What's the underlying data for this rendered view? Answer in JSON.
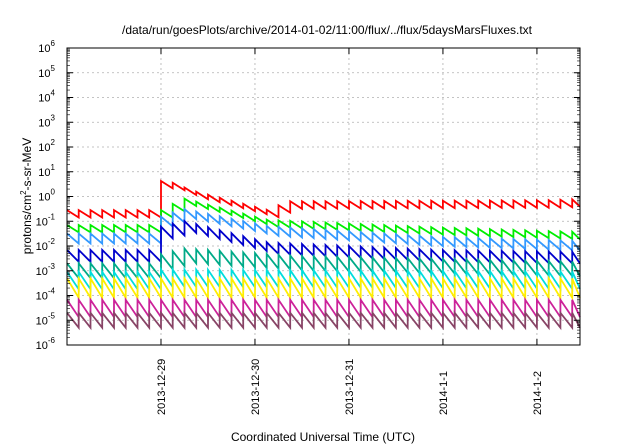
{
  "chart_data": {
    "type": "line",
    "title": "/data/run/goesPlots/archive/2014-01-02/11:00/flux/../flux/5daysMarsFluxes.txt",
    "xlabel": "Coordinated Universal Time (UTC)",
    "ylabel": "protons/cm²-s-sr-MeV",
    "ylabel_parts": {
      "pre": "protons/cm",
      "sup": "2",
      "post": "-s-sr-MeV"
    },
    "y_scale": "log",
    "ylim_exp": [
      -6,
      6
    ],
    "y_ticks": [
      {
        "exp": -6,
        "label_base": "10",
        "label_exp": "-6"
      },
      {
        "exp": -5,
        "label_base": "10",
        "label_exp": "-5"
      },
      {
        "exp": -4,
        "label_base": "10",
        "label_exp": "-4"
      },
      {
        "exp": -3,
        "label_base": "10",
        "label_exp": "-3"
      },
      {
        "exp": -2,
        "label_base": "10",
        "label_exp": "-2"
      },
      {
        "exp": -1,
        "label_base": "10",
        "label_exp": "-1"
      },
      {
        "exp": 0,
        "label_base": "10",
        "label_exp": "0"
      },
      {
        "exp": 1,
        "label_base": "10",
        "label_exp": "1"
      },
      {
        "exp": 2,
        "label_base": "10",
        "label_exp": "2"
      },
      {
        "exp": 3,
        "label_base": "10",
        "label_exp": "3"
      },
      {
        "exp": 4,
        "label_base": "10",
        "label_exp": "4"
      },
      {
        "exp": 5,
        "label_base": "10",
        "label_exp": "5"
      },
      {
        "exp": 6,
        "label_base": "10",
        "label_exp": "6"
      }
    ],
    "x_range": [
      "2013-12-28 00:00",
      "2014-01-02 11:00"
    ],
    "x_ticks": [
      {
        "date": "2013-12-29 00:00",
        "label": "2013-12-29"
      },
      {
        "date": "2013-12-30 00:00",
        "label": "2013-12-30"
      },
      {
        "date": "2013-12-31 00:00",
        "label": "2013-12-31"
      },
      {
        "date": "2014-01-01 00:00",
        "label": "2014-1-1"
      },
      {
        "date": "2014-01-02 00:00",
        "label": "2014-1-2"
      }
    ],
    "grid": true,
    "legend": "none",
    "sawtooth_period_hours": 3,
    "jump_time": "2013-12-29 00:00",
    "series": [
      {
        "color": "#ff0000",
        "level_before": 0.2,
        "level_after": [
          [
            0.14,
            3.0
          ],
          [
            0.4,
            1.2
          ],
          [
            1.2,
            0.2
          ],
          [
            1.4,
            0.45
          ],
          [
            4.2,
            0.5
          ],
          [
            5.1,
            0.7
          ],
          [
            5.3,
            0.5
          ]
        ],
        "tooth": 2.0
      },
      {
        "color": "#00ee00",
        "level_before": 0.05,
        "level_after": [
          [
            0,
            0.15
          ],
          [
            0.3,
            0.6
          ],
          [
            1.2,
            0.08
          ],
          [
            3,
            0.04
          ],
          [
            5.4,
            0.02
          ]
        ],
        "tooth": 2.0
      },
      {
        "color": "#3399ff",
        "level_before": 0.02,
        "level_after": [
          [
            0,
            0.08
          ],
          [
            0.3,
            0.2
          ],
          [
            1.2,
            0.04
          ],
          [
            3,
            0.015
          ],
          [
            5.4,
            0.008
          ]
        ],
        "tooth": 2.5
      },
      {
        "color": "#0000cc",
        "level_before": 0.004,
        "level_after": [
          [
            0,
            0.03
          ],
          [
            0.3,
            0.06
          ],
          [
            1.2,
            0.008
          ],
          [
            3,
            0.004
          ],
          [
            5.4,
            0.003
          ]
        ],
        "tooth": 3.0
      },
      {
        "color": "#00aa88",
        "level_before": 0.001,
        "level_after": [
          [
            0,
            0.002
          ],
          [
            0.3,
            0.004
          ],
          [
            1.5,
            0.002
          ],
          [
            5.4,
            0.001
          ]
        ],
        "tooth": 4.0
      },
      {
        "color": "#00dddd",
        "level_before": 0.0004,
        "level_after": [
          [
            0,
            0.0005
          ],
          [
            5.4,
            0.0004
          ]
        ],
        "tooth": 5.0
      },
      {
        "color": "#ffee00",
        "level_before": 0.0002,
        "level_after": [
          [
            0,
            0.0002
          ],
          [
            5.4,
            0.0002
          ]
        ],
        "tooth": 6.0
      },
      {
        "color": "#cc2299",
        "level_before": 3e-05,
        "level_after": [
          [
            0,
            3e-05
          ],
          [
            5.4,
            3e-05
          ]
        ],
        "tooth": 5.0
      },
      {
        "color": "#884466",
        "level_before": 1e-05,
        "level_after": [
          [
            0,
            1e-05
          ],
          [
            5.4,
            1e-05
          ]
        ],
        "tooth": 4.0
      }
    ]
  }
}
